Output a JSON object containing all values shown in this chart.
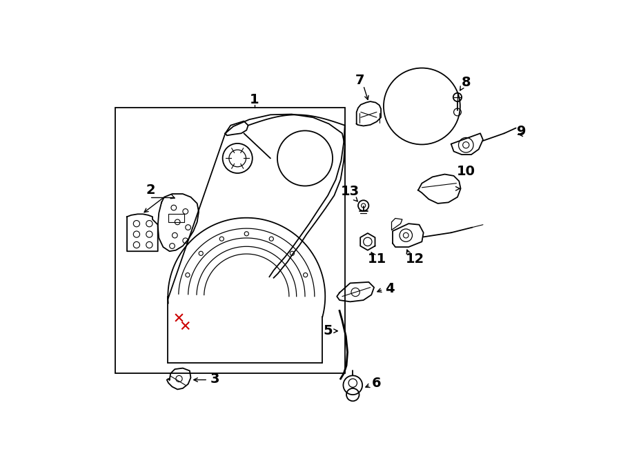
{
  "bg_color": "#ffffff",
  "line_color": "#000000",
  "red_color": "#cc0000",
  "figsize": [
    9.0,
    6.61
  ],
  "dpi": 100
}
